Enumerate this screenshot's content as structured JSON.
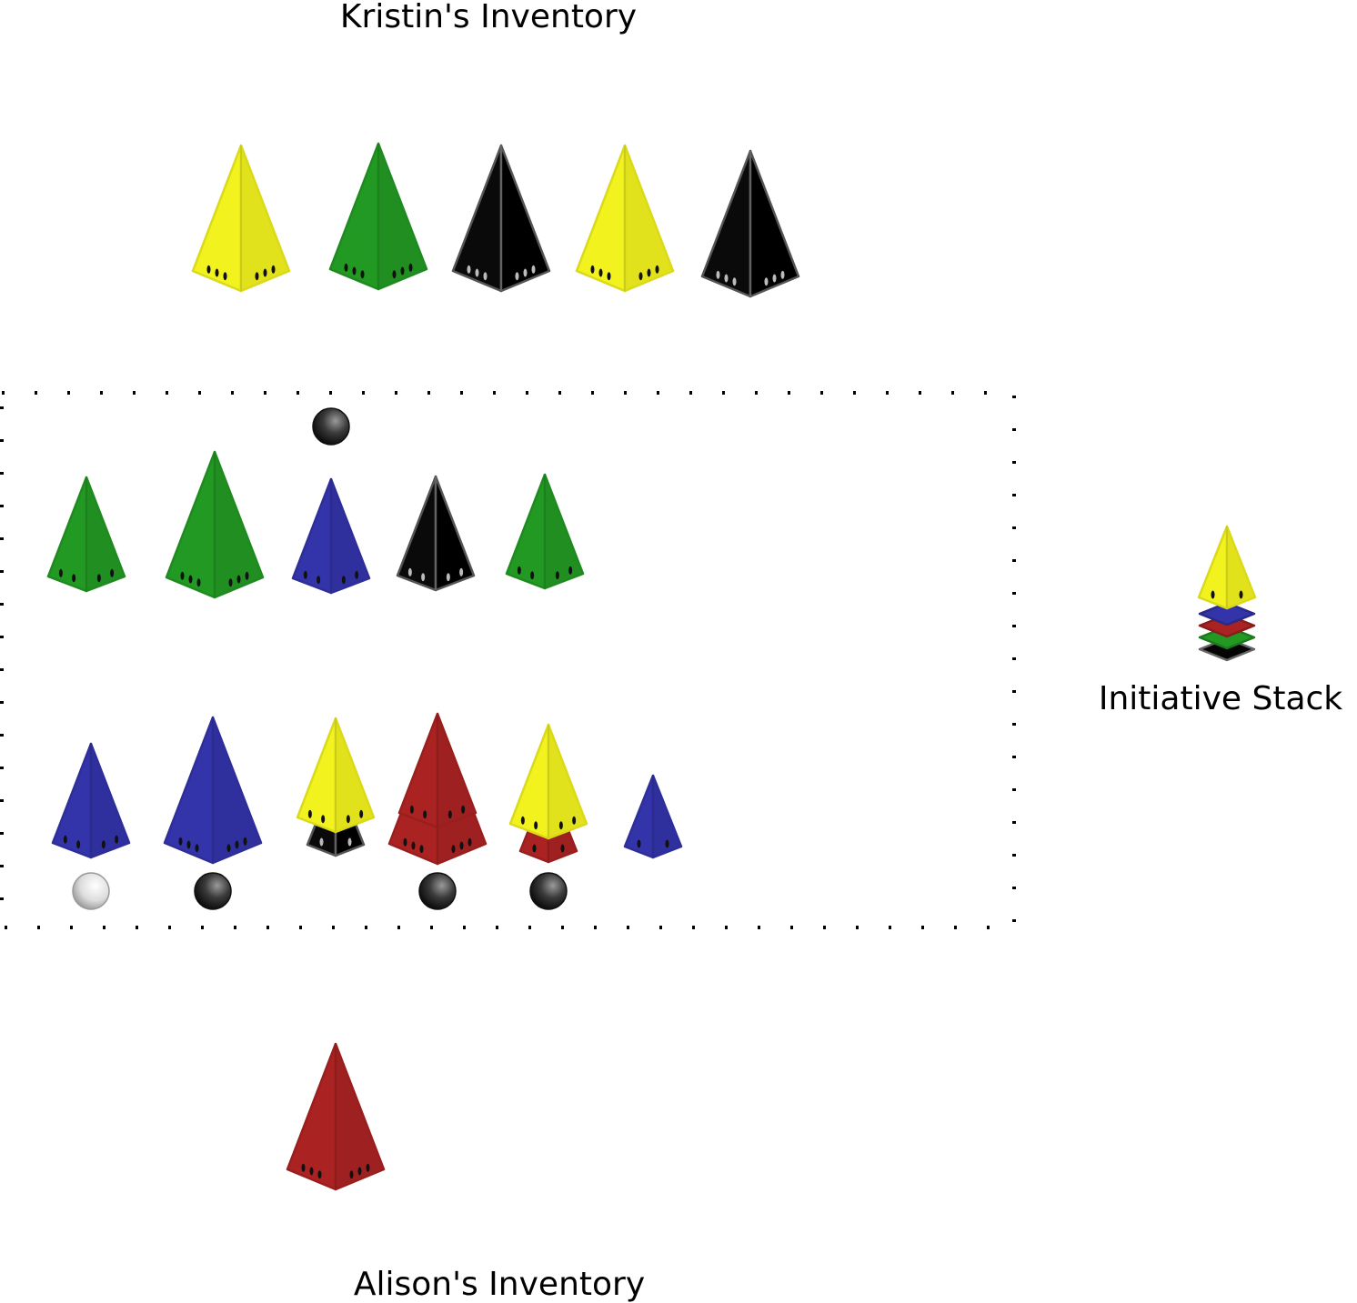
{
  "labels": {
    "kristin_inventory": "Kristin's Inventory",
    "alison_inventory": "Alison's Inventory",
    "initiative_stack": "Initiative Stack"
  },
  "colors": {
    "yellow": "#f2f21e",
    "green": "#229922",
    "black": "#050505",
    "blue": "#3333aa",
    "red": "#aa2222",
    "board_dots": "#000000"
  },
  "kristin_inventory": {
    "pieces": [
      {
        "color": "yellow",
        "size": "large",
        "pips": 3
      },
      {
        "color": "green",
        "size": "large",
        "pips": 3
      },
      {
        "color": "black",
        "size": "large",
        "pips": 3
      },
      {
        "color": "yellow",
        "size": "large",
        "pips": 3
      },
      {
        "color": "black",
        "size": "large",
        "pips": 3
      }
    ]
  },
  "board": {
    "top_row": {
      "markers": [
        {
          "column": 3,
          "shade": "dark"
        }
      ],
      "stacks": [
        {
          "pieces": [
            {
              "color": "green",
              "size": "medium",
              "pips": 2
            }
          ]
        },
        {
          "pieces": [
            {
              "color": "green",
              "size": "large",
              "pips": 3
            }
          ]
        },
        {
          "pieces": [
            {
              "color": "blue",
              "size": "medium",
              "pips": 2
            }
          ]
        },
        {
          "pieces": [
            {
              "color": "black",
              "size": "medium",
              "pips": 2
            }
          ]
        },
        {
          "pieces": [
            {
              "color": "green",
              "size": "medium",
              "pips": 2
            }
          ]
        }
      ]
    },
    "bottom_row": {
      "stacks": [
        {
          "pieces": [
            {
              "color": "blue",
              "size": "medium",
              "pips": 2
            }
          ],
          "marker": "light"
        },
        {
          "pieces": [
            {
              "color": "blue",
              "size": "large",
              "pips": 3
            }
          ],
          "marker": "dark"
        },
        {
          "pieces": [
            {
              "color": "black",
              "size": "small",
              "pips": 1
            },
            {
              "color": "yellow",
              "size": "medium",
              "pips": 2
            }
          ],
          "marker": null
        },
        {
          "pieces": [
            {
              "color": "red",
              "size": "large",
              "pips": 3
            },
            {
              "color": "red",
              "size": "medium",
              "pips": 2
            }
          ],
          "marker": "dark"
        },
        {
          "pieces": [
            {
              "color": "red",
              "size": "small",
              "pips": 1
            },
            {
              "color": "yellow",
              "size": "medium",
              "pips": 2
            }
          ],
          "marker": "dark"
        },
        {
          "pieces": [
            {
              "color": "blue",
              "size": "small",
              "pips": 1
            }
          ],
          "marker": null
        }
      ]
    }
  },
  "initiative_stack": {
    "order_bottom_to_top": [
      "black",
      "green",
      "red",
      "blue",
      "yellow"
    ]
  },
  "alison_inventory": {
    "pieces": [
      {
        "color": "red",
        "size": "large",
        "pips": 3
      }
    ]
  }
}
